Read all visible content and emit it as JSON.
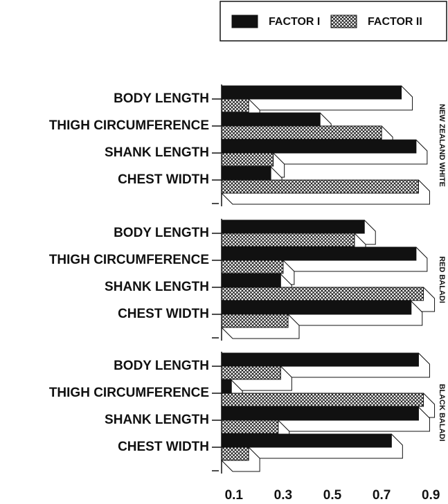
{
  "chart_data": {
    "type": "bar",
    "orientation": "horizontal",
    "three_d": true,
    "groups": [
      "NEW ZEALAND WHITE",
      "RED BALADI",
      "BLACK BALADI"
    ],
    "categories": [
      "BODY LENGTH",
      "THIGH CIRCUMFERENCE",
      "SHANK LENGTH",
      "CHEST WIDTH",
      "BODY LENGTH",
      "THIGH CIRCUMFERENCE",
      "SHANK LENGTH",
      "CHEST WIDTH",
      "BODY LENGTH",
      "THIGH CIRCUMFERENCE",
      "SHANK LENGTH",
      "CHEST WIDTH"
    ],
    "series": [
      {
        "name": "FACTOR I",
        "color": "#111111",
        "values": [
          0.78,
          0.45,
          0.84,
          0.25,
          0.63,
          0.84,
          0.29,
          0.82,
          0.85,
          0.09,
          0.85,
          0.74
        ]
      },
      {
        "name": "FACTOR II",
        "color": "#ffffff",
        "pattern": "crosshatch",
        "values": [
          0.16,
          0.7,
          0.26,
          0.85,
          0.59,
          0.3,
          0.87,
          0.32,
          0.29,
          0.87,
          0.28,
          0.16
        ]
      }
    ],
    "xlim": [
      0.05,
      0.95
    ],
    "xticks": [
      0.1,
      0.3,
      0.5,
      0.7,
      0.9
    ],
    "legend": "top-right"
  }
}
